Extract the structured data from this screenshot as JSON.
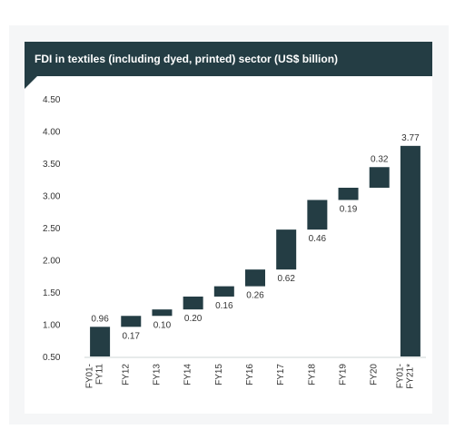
{
  "chart_data": {
    "type": "bar",
    "title": "FDI in textiles (including dyed, printed) sector (US$ billion)",
    "categories": [
      "FY01-FY11",
      "FY12",
      "FY13",
      "FY14",
      "FY15",
      "FY16",
      "FY17",
      "FY18",
      "FY19",
      "FY20",
      "FY01-FY21*"
    ],
    "category_lines": [
      [
        "FY01-",
        "FY11"
      ],
      [
        "FY12"
      ],
      [
        "FY13"
      ],
      [
        "FY14"
      ],
      [
        "FY15"
      ],
      [
        "FY16"
      ],
      [
        "FY17"
      ],
      [
        "FY18"
      ],
      [
        "FY19"
      ],
      [
        "FY20"
      ],
      [
        "FY01-",
        "FY21*"
      ]
    ],
    "values": [
      0.96,
      0.17,
      0.1,
      0.2,
      0.16,
      0.26,
      0.62,
      0.46,
      0.19,
      0.32,
      3.77
    ],
    "value_labels": [
      "0.96",
      "0.17",
      "0.10",
      "0.20",
      "0.16",
      "0.26",
      "0.62",
      "0.46",
      "0.19",
      "0.32",
      "3.77"
    ],
    "subtype": "waterfall",
    "ylim": [
      0.5,
      4.5
    ],
    "yticks": [
      "4.50",
      "4.00",
      "3.50",
      "3.00",
      "2.50",
      "2.00",
      "1.50",
      "1.00",
      "0.50"
    ],
    "grid": false,
    "colors": {
      "bar": "#243d44",
      "header": "#243d44"
    }
  }
}
